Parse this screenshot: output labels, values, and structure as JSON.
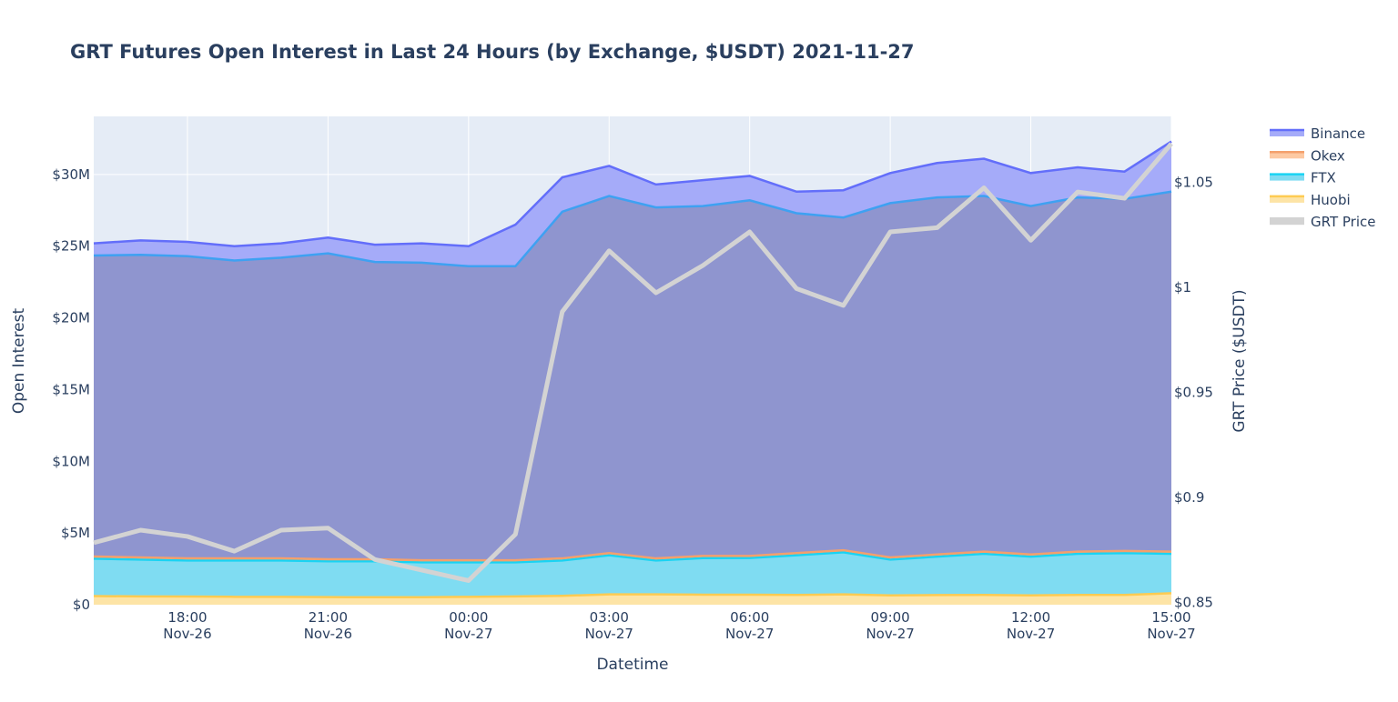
{
  "chart_data": {
    "type": "area",
    "title": "GRT Futures Open Interest in Last 24 Hours (by Exchange, $USDT) 2021-11-27",
    "xlabel": "Datetime",
    "ylabel": "Open Interest",
    "y2label": "GRT Price ($USDT)",
    "ylim": [
      0,
      34.05
    ],
    "y2lim": [
      0.8485,
      1.081
    ],
    "grid": true,
    "legend_placement": "top-right outside",
    "x_hours_from_start": [
      0,
      1,
      2,
      3,
      4,
      5,
      6,
      7,
      8,
      9,
      10,
      11,
      12,
      13,
      14,
      15,
      16,
      17,
      18,
      19,
      20,
      21,
      22,
      23
    ],
    "x_start": "2021-11-26 16:00",
    "x_ticks": [
      {
        "hour": 2,
        "label": "18:00",
        "date": "Nov-26"
      },
      {
        "hour": 5,
        "label": "21:00",
        "date": "Nov-26"
      },
      {
        "hour": 8,
        "label": "00:00",
        "date": "Nov-27"
      },
      {
        "hour": 11,
        "label": "03:00",
        "date": "Nov-27"
      },
      {
        "hour": 14,
        "label": "06:00",
        "date": "Nov-27"
      },
      {
        "hour": 17,
        "label": "09:00",
        "date": "Nov-27"
      },
      {
        "hour": 20,
        "label": "12:00",
        "date": "Nov-27"
      },
      {
        "hour": 23,
        "label": "15:00",
        "date": "Nov-27"
      }
    ],
    "y_ticks": [
      {
        "v": 0,
        "label": "$0"
      },
      {
        "v": 5,
        "label": "$5M"
      },
      {
        "v": 10,
        "label": "$10M"
      },
      {
        "v": 15,
        "label": "$15M"
      },
      {
        "v": 20,
        "label": "$20M"
      },
      {
        "v": 25,
        "label": "$25M"
      },
      {
        "v": 30,
        "label": "$30M"
      }
    ],
    "y2_ticks": [
      {
        "v": 0.85,
        "label": "$0.85"
      },
      {
        "v": 0.9,
        "label": "$0.9"
      },
      {
        "v": 0.95,
        "label": "$0.95"
      },
      {
        "v": 1.0,
        "label": "$1"
      },
      {
        "v": 1.05,
        "label": "$1.05"
      }
    ],
    "units": "millions USDT (stacked)",
    "series": [
      {
        "name": "Huobi",
        "color": "#fecb52",
        "fill": "#fde4a6",
        "values": [
          0.6,
          0.58,
          0.57,
          0.55,
          0.55,
          0.53,
          0.52,
          0.52,
          0.55,
          0.58,
          0.62,
          0.72,
          0.72,
          0.7,
          0.7,
          0.68,
          0.72,
          0.65,
          0.67,
          0.68,
          0.65,
          0.68,
          0.68,
          0.8
        ]
      },
      {
        "name": "FTX",
        "color": "#19d3f3",
        "fill": "#7fdcf2",
        "values": [
          2.61,
          2.57,
          2.51,
          2.53,
          2.53,
          2.5,
          2.51,
          2.44,
          2.41,
          2.38,
          2.46,
          2.73,
          2.36,
          2.55,
          2.56,
          2.77,
          2.93,
          2.5,
          2.68,
          2.87,
          2.7,
          2.87,
          2.92,
          2.75
        ]
      },
      {
        "name": "Okex",
        "color": "#f4a06c",
        "fill": "#fdc9a2",
        "values": [
          0.15,
          0.15,
          0.15,
          0.15,
          0.15,
          0.14,
          0.14,
          0.14,
          0.14,
          0.14,
          0.15,
          0.15,
          0.15,
          0.15,
          0.14,
          0.15,
          0.15,
          0.15,
          0.15,
          0.15,
          0.15,
          0.15,
          0.15,
          0.15
        ]
      },
      {
        "name": "Binance",
        "color": "#636efa",
        "fill": "#a5abf9",
        "values": [
          21.84,
          22.1,
          22.07,
          21.77,
          21.97,
          22.43,
          21.93,
          22.1,
          21.9,
          23.4,
          26.57,
          27.0,
          26.07,
          26.2,
          26.5,
          25.2,
          25.1,
          26.8,
          27.3,
          27.4,
          26.6,
          26.8,
          26.45,
          28.6
        ]
      }
    ],
    "overlay_line": {
      "color": "#3ea1f2",
      "values": [
        24.35,
        24.4,
        24.3,
        24.0,
        24.2,
        24.5,
        23.9,
        23.85,
        23.6,
        23.6,
        27.4,
        28.5,
        27.7,
        27.8,
        28.2,
        27.3,
        27.0,
        28.0,
        28.4,
        28.5,
        27.8,
        28.4,
        28.3,
        28.8
      ]
    },
    "price": {
      "name": "GRT Price",
      "color": "#d3d3d3",
      "values": [
        0.878,
        0.884,
        0.881,
        0.874,
        0.884,
        0.885,
        0.87,
        0.865,
        0.86,
        0.882,
        0.988,
        1.017,
        0.997,
        1.01,
        1.026,
        0.999,
        0.991,
        1.026,
        1.028,
        1.047,
        1.022,
        1.045,
        1.042,
        1.068
      ]
    },
    "legend": [
      "Binance",
      "Okex",
      "FTX",
      "Huobi",
      "GRT Price"
    ]
  }
}
